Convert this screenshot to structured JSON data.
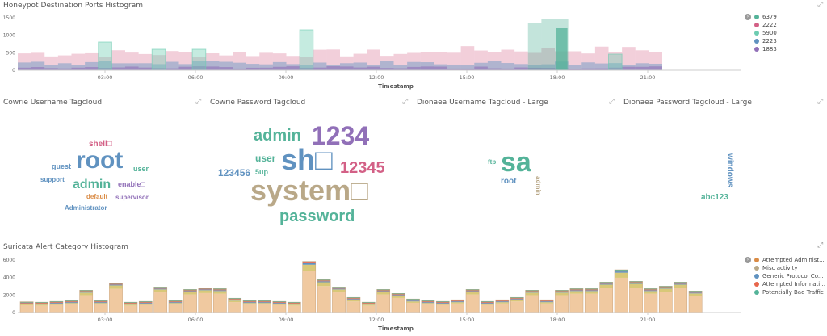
{
  "panels": {
    "ports_title": "Honeypot Destination Ports Histogram",
    "cowrie_user_title": "Cowrie Username Tagcloud",
    "cowrie_pass_title": "Cowrie Password Tagcloud",
    "dionaea_user_title": "Dionaea Username Tagcloud - Large",
    "dionaea_pass_title": "Dionaea Password Tagcloud - Large",
    "suricata_title": "Suricata Alert Category Histogram",
    "expand_glyph": "⤢"
  },
  "ports_chart": {
    "xlabel": "Timestamp",
    "xticks": [
      "03:00",
      "06:00",
      "09:00",
      "12:00",
      "15:00",
      "18:00",
      "21:00"
    ],
    "yticks": [
      "1500",
      "1000",
      "500",
      "0"
    ],
    "legend_toggle": "›",
    "series": [
      {
        "name": "6379",
        "color": "#54b399"
      },
      {
        "name": "2222",
        "color": "#d36086"
      },
      {
        "name": "5900",
        "color": "#6dccb1"
      },
      {
        "name": "2223",
        "color": "#6092c0"
      },
      {
        "name": "1883",
        "color": "#9170b8"
      }
    ]
  },
  "cowrie_usernames": [
    {
      "text": "shell□",
      "color": "#d36086",
      "size": 10
    },
    {
      "text": "root",
      "color": "#6092c0",
      "size": 30
    },
    {
      "text": "guest",
      "color": "#6092c0",
      "size": 9
    },
    {
      "text": "user",
      "color": "#54b399",
      "size": 9
    },
    {
      "text": "support",
      "color": "#6092c0",
      "size": 8
    },
    {
      "text": "admin",
      "color": "#54b399",
      "size": 16
    },
    {
      "text": "enable□",
      "color": "#9170b8",
      "size": 9
    },
    {
      "text": "default",
      "color": "#da8b45",
      "size": 8
    },
    {
      "text": "supervisor",
      "color": "#9170b8",
      "size": 8
    },
    {
      "text": "Administrator",
      "color": "#6092c0",
      "size": 8
    }
  ],
  "cowrie_passwords": [
    {
      "text": "admin",
      "color": "#54b399",
      "size": 20
    },
    {
      "text": "1234",
      "color": "#9170b8",
      "size": 32
    },
    {
      "text": "user",
      "color": "#54b399",
      "size": 12
    },
    {
      "text": "sh□",
      "color": "#6092c0",
      "size": 36
    },
    {
      "text": "12345",
      "color": "#d36086",
      "size": 20
    },
    {
      "text": "123456",
      "color": "#6092c0",
      "size": 12
    },
    {
      "text": "5up",
      "color": "#54b399",
      "size": 9
    },
    {
      "text": "system□",
      "color": "#b9a888",
      "size": 36
    },
    {
      "text": "password",
      "color": "#54b399",
      "size": 20
    }
  ],
  "dionaea_usernames": [
    {
      "text": "ftp",
      "color": "#54b399",
      "size": 8
    },
    {
      "text": "sa",
      "color": "#54b399",
      "size": 34
    },
    {
      "text": "root",
      "color": "#6092c0",
      "size": 10
    },
    {
      "text": "admin",
      "color": "#b9a888",
      "size": 8
    }
  ],
  "dionaea_passwords": [
    {
      "text": "windows",
      "color": "#6092c0",
      "size": 10
    },
    {
      "text": "abc123",
      "color": "#54b399",
      "size": 10
    }
  ],
  "suricata_chart": {
    "xlabel": "Timestamp",
    "xticks": [
      "03:00",
      "06:00",
      "09:00",
      "12:00",
      "15:00",
      "18:00",
      "21:00"
    ],
    "yticks": [
      "6000",
      "4000",
      "2000",
      "0"
    ],
    "legend_toggle": "›",
    "series": [
      {
        "name": "Attempted Administ...",
        "color": "#da8b45"
      },
      {
        "name": "Misc activity",
        "color": "#b9a888"
      },
      {
        "name": "Generic Protocol Co...",
        "color": "#6092c0"
      },
      {
        "name": "Attempted Informati...",
        "color": "#e7664c"
      },
      {
        "name": "Potentially Bad Traffic",
        "color": "#54b399"
      }
    ]
  }
}
